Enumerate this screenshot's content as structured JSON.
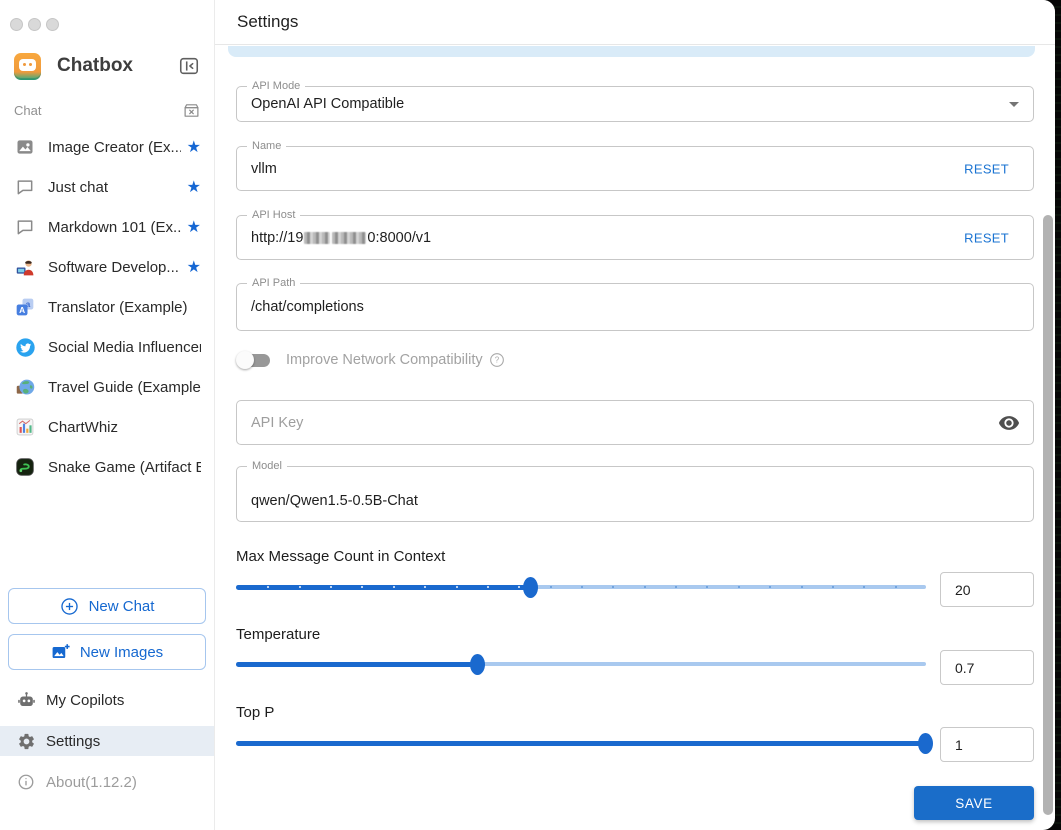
{
  "sidebar": {
    "app_name": "Chatbox",
    "section_label": "Chat",
    "chats": [
      {
        "label": "Image Creator (Ex...",
        "icon": "image-icon",
        "starred": true
      },
      {
        "label": "Just chat",
        "icon": "chat-bubble-icon",
        "starred": true
      },
      {
        "label": "Markdown 101 (Ex...",
        "icon": "chat-bubble-icon",
        "starred": true
      },
      {
        "label": "Software Develop...",
        "icon": "developer-icon",
        "starred": true
      },
      {
        "label": "Translator (Example)",
        "icon": "translator-icon",
        "starred": false
      },
      {
        "label": "Social Media Influencer ...",
        "icon": "twitter-icon",
        "starred": false
      },
      {
        "label": "Travel Guide (Example)",
        "icon": "globe-icon",
        "starred": false
      },
      {
        "label": "ChartWhiz",
        "icon": "bar-chart-icon",
        "starred": false
      },
      {
        "label": "Snake Game (Artifact E...",
        "icon": "snake-icon",
        "starred": false
      }
    ],
    "new_chat_label": "New Chat",
    "new_images_label": "New Images",
    "my_copilots_label": "My Copilots",
    "settings_label": "Settings",
    "about_label": "About(1.12.2)"
  },
  "header": {
    "title": "Settings"
  },
  "form": {
    "api_mode": {
      "label": "API Mode",
      "value": "OpenAI API Compatible"
    },
    "name": {
      "label": "Name",
      "value": "vllm",
      "reset_label": "RESET"
    },
    "api_host": {
      "label": "API Host",
      "value_start": "http://19",
      "value_end": "0:8000/v1",
      "redacted": true,
      "reset_label": "RESET"
    },
    "api_path": {
      "label": "API Path",
      "value": "/chat/completions"
    },
    "network_toggle": {
      "label": "Improve Network Compatibility",
      "state": "off"
    },
    "api_key": {
      "placeholder": "API Key",
      "value": ""
    },
    "model": {
      "label": "Model",
      "value": "qwen/Qwen1.5-0.5B-Chat"
    },
    "sliders": [
      {
        "label": "Max Message Count in Context",
        "value": "20",
        "percent": 42.6,
        "tick_count": 21
      },
      {
        "label": "Temperature",
        "value": "0.7",
        "percent": 34.9,
        "tick_count": 0
      },
      {
        "label": "Top P",
        "value": "1",
        "percent": 99.8,
        "tick_count": 0
      }
    ],
    "save_label": "SAVE"
  },
  "colors": {
    "primary_blue": "#1a6dc9",
    "link_blue": "#1a73d2",
    "star_blue": "#1667d3",
    "slider_fill": "#1a69ce",
    "slider_rail": "#a9c9ef",
    "selected_row_bg": "#e7edf4",
    "alert_strip_bg": "#d9ebf8",
    "label_gray": "#8d8d8d"
  }
}
